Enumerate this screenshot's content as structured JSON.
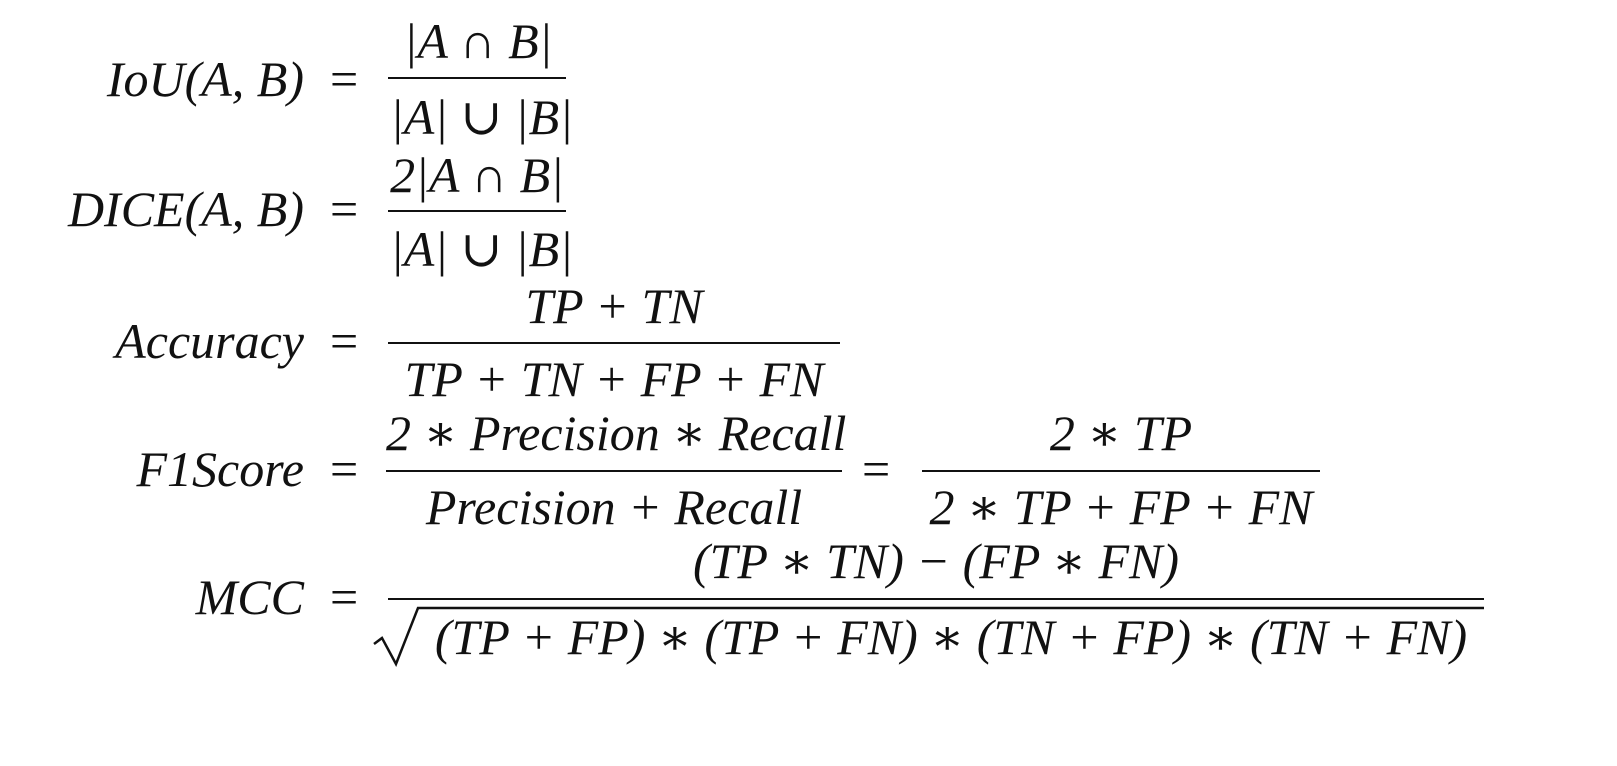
{
  "equations": {
    "iou": {
      "lhs": "IoU(A, B)",
      "eq": "=",
      "num": "|A ∩ B|",
      "den": "|A| ∪ |B|"
    },
    "dice": {
      "lhs": "DICE(A, B)",
      "eq": "=",
      "num": "2|A ∩ B|",
      "den": "|A| ∪ |B|"
    },
    "accuracy": {
      "lhs": "Accuracy",
      "eq": "=",
      "num": "TP + TN",
      "den": "TP + TN + FP + FN"
    },
    "f1": {
      "lhs": "F1Score",
      "eq": "=",
      "num1": "2 ∗ Precision ∗ Recall",
      "den1": "Precision + Recall",
      "eq2": "=",
      "num2": "2 ∗ TP",
      "den2": "2 ∗ TP + FP + FN"
    },
    "mcc": {
      "lhs": "MCC",
      "eq": "=",
      "num": "(TP ∗ TN) − (FP ∗ FN)",
      "den": "(TP + FP) ∗ (TP + FN) ∗ (TN + FP) ∗ (TN + FN)"
    }
  }
}
